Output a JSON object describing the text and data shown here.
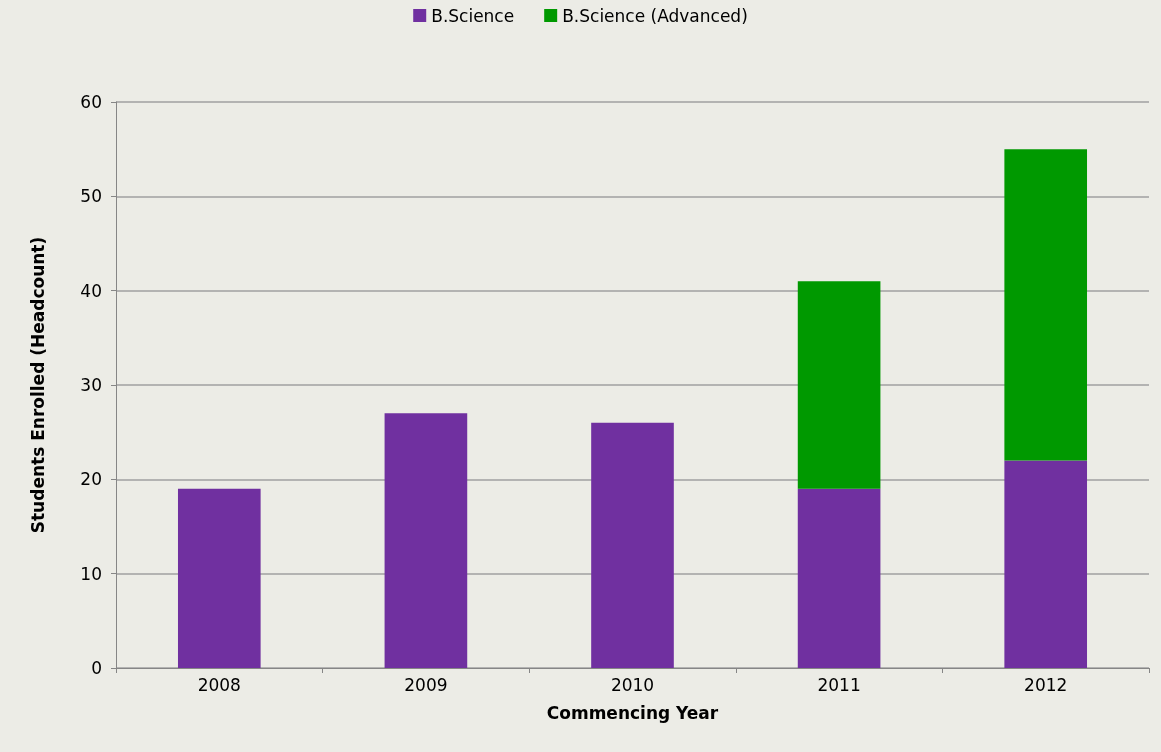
{
  "chart_data": {
    "type": "bar",
    "stacked": true,
    "xlabel": "Commencing Year",
    "ylabel": "Students Enrolled (Headcount)",
    "categories": [
      "2008",
      "2009",
      "2010",
      "2011",
      "2012"
    ],
    "series": [
      {
        "name": "B.Science",
        "color": "#7030a0",
        "values": [
          19,
          27,
          26,
          19,
          22
        ]
      },
      {
        "name": "B.Science (Advanced)",
        "color": "#009900",
        "values": [
          null,
          null,
          null,
          22,
          33
        ]
      }
    ],
    "ylim": [
      0,
      60
    ],
    "yticks": [
      0,
      10,
      20,
      30,
      40,
      50,
      60
    ],
    "grid": "y",
    "legend": "top"
  }
}
